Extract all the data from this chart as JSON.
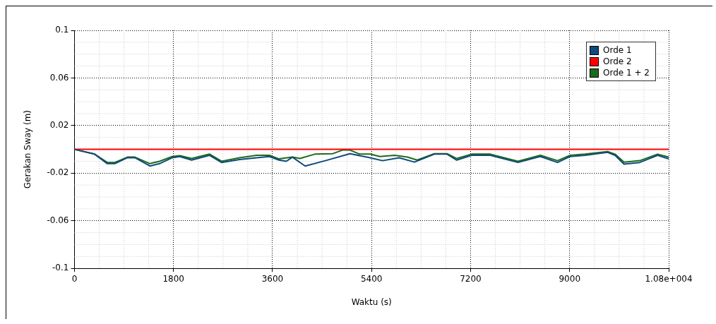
{
  "chart_data": {
    "type": "line",
    "xlabel": "Waktu (s)",
    "ylabel": "Gerakan Sway (m)",
    "xlim": [
      0,
      10800
    ],
    "xticks": [
      0,
      1800,
      3600,
      5400,
      7200,
      9000,
      {
        "value": 10800,
        "label": "1.08e+004"
      }
    ],
    "ylim": [
      -0.1,
      0.1
    ],
    "yticks": [
      -0.1,
      -0.06,
      -0.02,
      0.02,
      0.06,
      0.1
    ],
    "grid": true,
    "legend": "top right",
    "marker": "none",
    "line_style": "solid",
    "series": [
      {
        "name": "Orde 1",
        "color": "#0e4a7b",
        "x": [
          0,
          366,
          597,
          733,
          963,
          1099,
          1371,
          1547,
          1778,
          1913,
          2130,
          2456,
          2673,
          2999,
          3311,
          3542,
          3718,
          3850,
          3962,
          4193,
          4559,
          5007,
          5374,
          5600,
          5900,
          6180,
          6541,
          6771,
          6948,
          7219,
          7558,
          8061,
          8468,
          8780,
          9010,
          9282,
          9689,
          9825,
          9988,
          10273,
          10598,
          10800
        ],
        "values": [
          0,
          -0.004,
          -0.012,
          -0.012,
          -0.007,
          -0.007,
          -0.014,
          -0.012,
          -0.007,
          -0.006,
          -0.009,
          -0.005,
          -0.011,
          -0.0085,
          -0.007,
          -0.006,
          -0.009,
          -0.01,
          -0.0065,
          -0.014,
          -0.0095,
          -0.0036,
          -0.0071,
          -0.0095,
          -0.0071,
          -0.0107,
          -0.004,
          -0.004,
          -0.009,
          -0.005,
          -0.005,
          -0.011,
          -0.006,
          -0.011,
          -0.006,
          -0.005,
          -0.0025,
          -0.005,
          -0.0124,
          -0.011,
          -0.005,
          -0.008
        ]
      },
      {
        "name": "Orde 2",
        "color": "#ff0000",
        "x": [
          0,
          10800
        ],
        "values": [
          0,
          0
        ]
      },
      {
        "name": "Orde 1 + 2",
        "color": "#1a6b1a",
        "x": [
          0,
          366,
          597,
          733,
          963,
          1099,
          1371,
          1547,
          1778,
          1913,
          2130,
          2456,
          2673,
          2999,
          3311,
          3542,
          3718,
          3962,
          4098,
          4370,
          4695,
          4872,
          5007,
          5184,
          5374,
          5550,
          5822,
          6052,
          6228,
          6541,
          6771,
          6948,
          7219,
          7382,
          7558,
          8061,
          8468,
          8780,
          9010,
          9282,
          9689,
          9825,
          9988,
          10273,
          10598,
          10800
        ],
        "values": [
          0,
          -0.004,
          -0.011,
          -0.011,
          -0.0065,
          -0.0065,
          -0.012,
          -0.01,
          -0.006,
          -0.0053,
          -0.0077,
          -0.004,
          -0.01,
          -0.0071,
          -0.005,
          -0.005,
          -0.008,
          -0.0065,
          -0.0077,
          -0.004,
          -0.0036,
          -0.0006,
          -0.0006,
          -0.004,
          -0.004,
          -0.006,
          -0.005,
          -0.0065,
          -0.009,
          -0.0036,
          -0.0036,
          -0.0077,
          -0.004,
          -0.004,
          -0.004,
          -0.01,
          -0.005,
          -0.0095,
          -0.005,
          -0.004,
          -0.0018,
          -0.004,
          -0.0107,
          -0.0095,
          -0.004,
          -0.0065
        ]
      }
    ]
  }
}
